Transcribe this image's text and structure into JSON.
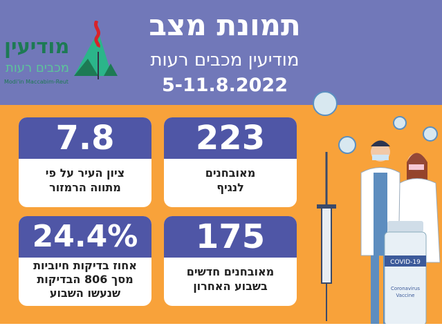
{
  "header": {
    "title": "תמונת מצב",
    "subtitle": "מודיעין מכבים רעות",
    "dates": "5-11.8.2022"
  },
  "logo": {
    "name_he": "מודיעין",
    "sub_he": "מכבים רעות",
    "name_en": "Modi'in Maccabim-Reut"
  },
  "cards": [
    {
      "value": "223",
      "label_line1": "מאובחנים",
      "label_line2": "לנגיף"
    },
    {
      "value": "7.8",
      "label_line1": "ציון העיר על פי",
      "label_line2": "מתווה הרמזור"
    },
    {
      "value": "175",
      "label_line1": "מאובחנים חדשים",
      "label_line2": "בשבוע האחרון"
    },
    {
      "value": "24.4%",
      "label_line1": "אחוז בדיקות חיוביות",
      "label_line2": "מסך 806 הבדיקות",
      "label_line3": "שנעשו השבוע"
    }
  ],
  "illustration": {
    "vial_label": "COVID-19",
    "vial_sub1": "Coronavirus",
    "vial_sub2": "Vaccine"
  },
  "colors": {
    "header_bg": "#7178b9",
    "body_bg": "#f8a23a",
    "card_header": "#4f56a6"
  }
}
